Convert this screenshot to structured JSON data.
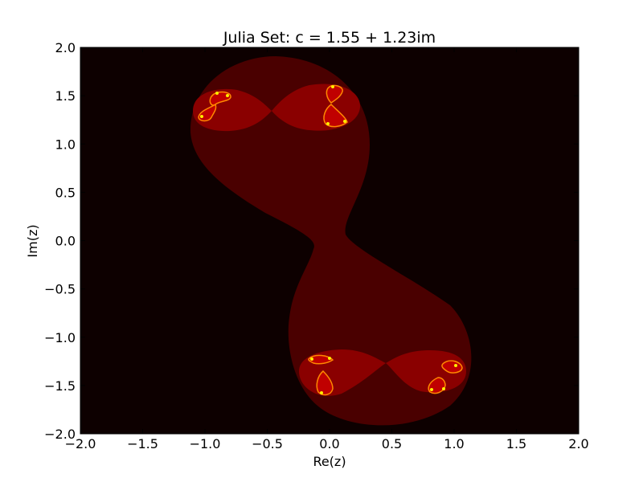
{
  "chart_data": {
    "type": "heatmap",
    "title": "Julia Set: c = 1.55 + 1.23im",
    "xlabel": "Re(z)",
    "ylabel": "Im(z)",
    "xlim": [
      -2.0,
      2.0
    ],
    "ylim": [
      -2.0,
      2.0
    ],
    "x_ticks": [
      -2.0,
      -1.5,
      -1.0,
      -0.5,
      0.0,
      0.5,
      1.0,
      1.5,
      2.0
    ],
    "x_tick_labels": [
      "−2.0",
      "−1.5",
      "−1.0",
      "−0.5",
      "0.0",
      "0.5",
      "1.0",
      "1.5",
      "2.0"
    ],
    "y_ticks": [
      2.0,
      1.5,
      1.0,
      0.5,
      0.0,
      -0.5,
      -1.0,
      -1.5,
      -2.0
    ],
    "y_tick_labels": [
      "2.0",
      "1.5",
      "1.0",
      "0.5",
      "0.0",
      "−0.5",
      "−1.0",
      "−1.5",
      "−2.0"
    ],
    "grid": false,
    "colormap": "hot",
    "colors": {
      "background": "#0d0000",
      "outer_lobe": "#4a0000",
      "inner_lobe": "#8a0000",
      "core": "#c00000",
      "highlight": "#ff8800",
      "spark": "#ffee00"
    }
  }
}
